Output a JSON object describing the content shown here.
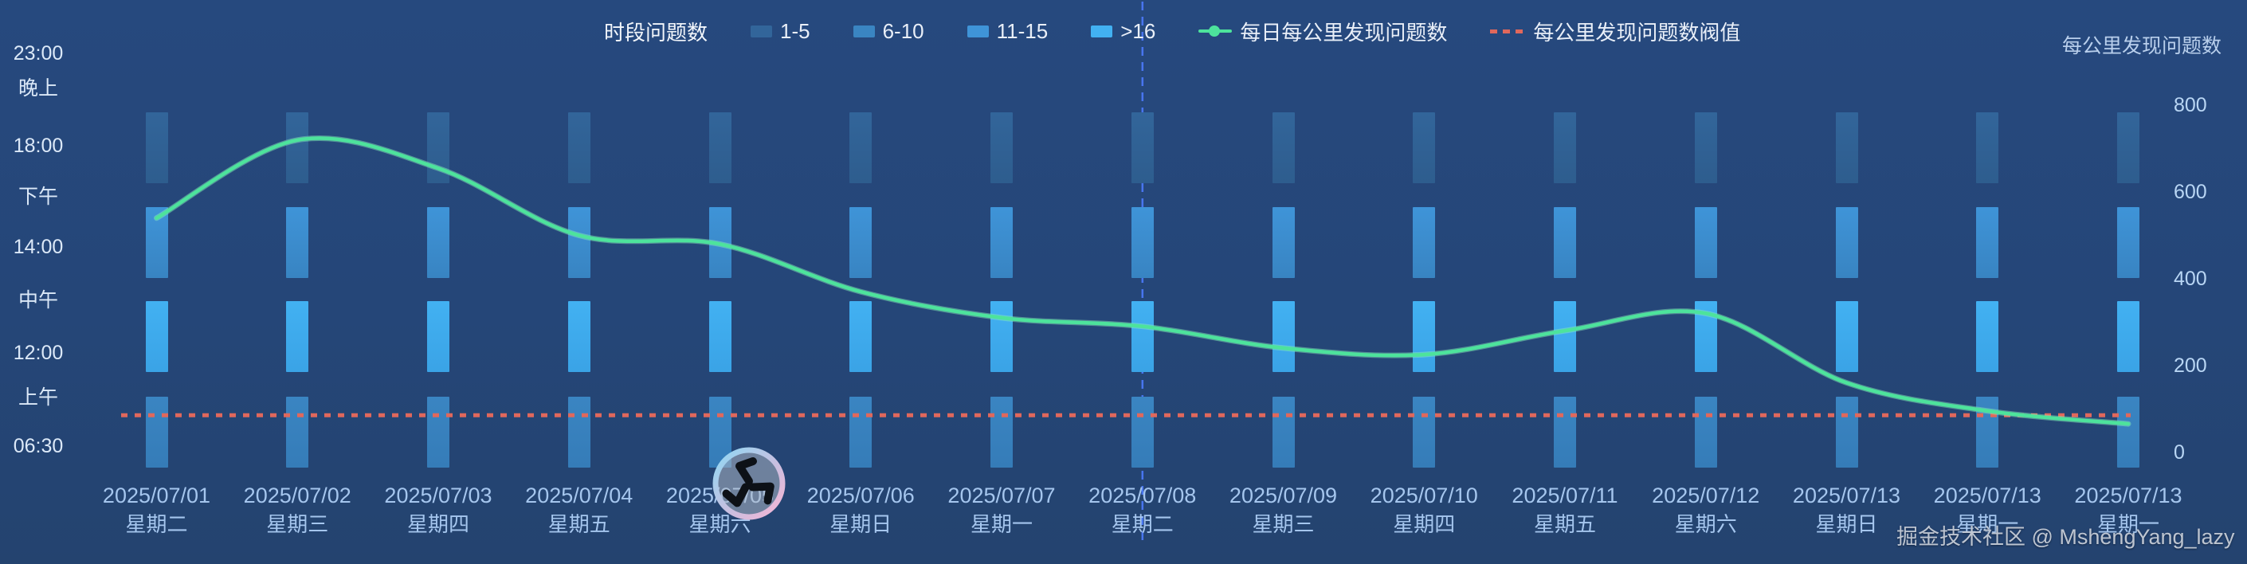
{
  "legend": {
    "heatmap_title": "时段问题数",
    "categories": [
      {
        "label": "1-5"
      },
      {
        "label": "6-10"
      },
      {
        "label": "11-15"
      },
      {
        "label": ">16"
      }
    ],
    "line_series_label": "每日每公里发现问题数",
    "threshold_label": "每公里发现问题数阀值"
  },
  "left_axis": {
    "labels": [
      "23:00",
      "晚上",
      "18:00",
      "下午",
      "14:00",
      "中午",
      "12:00",
      "上午",
      "06:30"
    ]
  },
  "right_axis": {
    "title": "每公里发现问题数",
    "ticks": [
      800,
      600,
      400,
      200,
      0
    ]
  },
  "watermark": "掘金技术社区 @ MshengYang_lazy",
  "logo": {
    "name": "juejin-community-avatar",
    "attached_to": "2025/07/05"
  },
  "colors": {
    "background": "#254678",
    "bin_1_5": "#32659a",
    "bin_6_10": "#3a85c2",
    "bin_11_15": "#3f94d8",
    "bin_gt16": "#42b1f2",
    "line_green": "#4de39c",
    "threshold_red": "#e0685c",
    "divider_blue": "#4a78f5",
    "axis_label": "#a5c6ee"
  },
  "chart_data": [
    {
      "type": "heatmap",
      "title": "时段问题数",
      "x_dates": [
        "2025/07/01",
        "2025/07/02",
        "2025/07/03",
        "2025/07/04",
        "2025/07/05",
        "2025/07/06",
        "2025/07/07",
        "2025/07/08",
        "2025/07/09",
        "2025/07/10",
        "2025/07/11",
        "2025/07/12",
        "2025/07/13",
        "2025/07/13",
        "2025/07/13"
      ],
      "x_weekdays": [
        "星期二",
        "星期三",
        "星期四",
        "星期五",
        "星期六",
        "星期日",
        "星期一",
        "星期二",
        "星期三",
        "星期四",
        "星期五",
        "星期六",
        "星期日",
        "星期一",
        "星期一"
      ],
      "y_rows": [
        "晚上",
        "下午",
        "中午",
        "上午"
      ],
      "legend_bins": [
        "1-5",
        "6-10",
        "11-15",
        ">16"
      ],
      "row_bin_by_row": {
        "晚上": "1-5",
        "下午": "11-15",
        "中午": ">16",
        "上午": "6-10"
      },
      "layout": {
        "grid": "4 rows x 15 columns, every cell filled, bin uniform per row"
      }
    },
    {
      "type": "line",
      "name": "每日每公里发现问题数",
      "x": [
        "2025/07/01",
        "2025/07/02",
        "2025/07/03",
        "2025/07/04",
        "2025/07/05",
        "2025/07/06",
        "2025/07/07",
        "2025/07/08",
        "2025/07/09",
        "2025/07/10",
        "2025/07/11",
        "2025/07/12",
        "2025/07/13",
        "2025/07/13",
        "2025/07/13"
      ],
      "values": [
        540,
        720,
        655,
        500,
        480,
        370,
        310,
        290,
        240,
        225,
        280,
        320,
        160,
        95,
        65
      ],
      "smooth": true,
      "ylabel": "每公里发现问题数",
      "ylim": [
        0,
        800
      ],
      "y_axis_position": "right",
      "threshold": {
        "name": "每公里发现问题数阀值",
        "value": 85,
        "style": "red dashed horizontal line"
      },
      "vertical_marker": {
        "x": "2025/07/08",
        "style": "blue dashed vertical line"
      },
      "legend_position": "top-center",
      "grid": false
    }
  ]
}
